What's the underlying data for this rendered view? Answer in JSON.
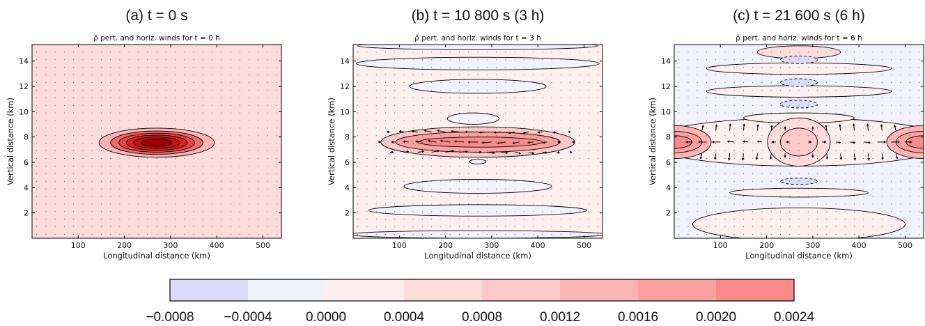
{
  "colors": {
    "levels": [
      "#dcdcfa",
      "#f2f2fd",
      "#fff0f0",
      "#fedcdc",
      "#fdc8c8",
      "#fcb4b4",
      "#fb9f9f",
      "#fa8a8a"
    ],
    "deep": [
      "#f06a6a",
      "#e84545",
      "#dc2020",
      "#c81010",
      "#a00000"
    ],
    "negative_contour": "#000000"
  },
  "chart_data": [
    {
      "type": "contour",
      "title": "(a) t = 0 s",
      "subtitle": "ρ̃ pert. and horiz. winds for t = 0 h",
      "xlabel": "Longitudinal distance (km)",
      "ylabel": "Vertical distance (km)",
      "xlim": [
        0,
        540
      ],
      "ylim": [
        0,
        15.3
      ],
      "xticks": [
        "100",
        "200",
        "300",
        "400",
        "500"
      ],
      "yticks": [
        "2",
        "4",
        "6",
        "8",
        "10",
        "12",
        "14"
      ],
      "background_level": 3,
      "features": [
        {
          "cx": 270,
          "cy": 7.55,
          "rx": 125,
          "ry": 1.15,
          "level": 5
        },
        {
          "cx": 270,
          "cy": 7.55,
          "rx": 100,
          "ry": 0.92,
          "level": 8
        },
        {
          "cx": 270,
          "cy": 7.55,
          "rx": 82,
          "ry": 0.75,
          "level": 9
        },
        {
          "cx": 270,
          "cy": 7.55,
          "rx": 66,
          "ry": 0.6,
          "level": 10
        },
        {
          "cx": 270,
          "cy": 7.55,
          "rx": 50,
          "ry": 0.45,
          "level": 11
        },
        {
          "cx": 270,
          "cy": 7.55,
          "rx": 33,
          "ry": 0.3,
          "level": 12
        }
      ],
      "arrows": []
    },
    {
      "type": "contour",
      "title": "(b) t = 10 800 s (3 h)",
      "subtitle": "ρ̃ pert. and horiz. winds for t = 3 h",
      "xlabel": "Longitudinal distance (km)",
      "ylabel": "Vertical distance (km)",
      "xlim": [
        0,
        540
      ],
      "ylim": [
        0,
        15.3
      ],
      "xticks": [
        "100",
        "200",
        "300",
        "400",
        "500"
      ],
      "yticks": [
        "2",
        "4",
        "6",
        "8",
        "10",
        "12",
        "14"
      ],
      "background_level": 2,
      "features": [
        {
          "cx": 270,
          "cy": 15.2,
          "rx": 260,
          "ry": 0.3,
          "level": 1
        },
        {
          "cx": 270,
          "cy": 13.8,
          "rx": 263,
          "ry": 0.5,
          "level": 1
        },
        {
          "cx": 270,
          "cy": 12.0,
          "rx": 148,
          "ry": 0.55,
          "level": 1
        },
        {
          "cx": 260,
          "cy": 9.45,
          "rx": 56,
          "ry": 0.45,
          "level": 1
        },
        {
          "cx": 270,
          "cy": 7.6,
          "rx": 210,
          "ry": 1.2,
          "level": 4
        },
        {
          "cx": 270,
          "cy": 7.6,
          "rx": 178,
          "ry": 0.8,
          "level": 6
        },
        {
          "cx": 275,
          "cy": 7.6,
          "rx": 135,
          "ry": 0.4,
          "level": 7
        },
        {
          "cx": 270,
          "cy": 6.05,
          "rx": 18,
          "ry": 0.18,
          "level": 1
        },
        {
          "cx": 270,
          "cy": 4.1,
          "rx": 160,
          "ry": 0.55,
          "level": 1
        },
        {
          "cx": 270,
          "cy": 2.2,
          "rx": 236,
          "ry": 0.45,
          "level": 1
        },
        {
          "cx": 270,
          "cy": 0.3,
          "rx": 280,
          "ry": 0.3,
          "level": 1
        }
      ],
      "arrows": [
        {
          "y": 8.4,
          "x": [
            80,
            110,
            140,
            170,
            200,
            230,
            260,
            290,
            320,
            350,
            380,
            410,
            440,
            470
          ],
          "u": [
            -5,
            -7,
            -9,
            -11,
            -12,
            -12,
            -12,
            -11,
            -10,
            -9,
            -8,
            -7,
            -5,
            -3
          ],
          "v": [
            0,
            1,
            1,
            2,
            2,
            1,
            0,
            -1,
            -1,
            -2,
            -2,
            -1,
            -1,
            0
          ]
        },
        {
          "y": 7.6,
          "x": [
            60,
            90,
            120,
            150,
            180,
            210,
            240,
            270,
            300,
            330,
            360,
            390,
            420,
            450,
            480
          ],
          "u": [
            -4,
            -5,
            -8,
            -10,
            -12,
            -14,
            -14,
            -14,
            -14,
            -12,
            -10,
            -8,
            -6,
            -5,
            -4
          ],
          "v": [
            0,
            0,
            1,
            1,
            2,
            2,
            1,
            0,
            -1,
            -2,
            -2,
            -1,
            -1,
            0,
            0
          ]
        },
        {
          "y": 6.8,
          "x": [
            80,
            110,
            140,
            170,
            200,
            230,
            260,
            290,
            320,
            350,
            380,
            410,
            440,
            470
          ],
          "u": [
            5,
            7,
            9,
            11,
            12,
            12,
            12,
            11,
            10,
            9,
            8,
            7,
            5,
            3
          ],
          "v": [
            0,
            1,
            1,
            2,
            2,
            1,
            0,
            -1,
            -1,
            -2,
            -2,
            -1,
            -1,
            0
          ]
        }
      ]
    },
    {
      "type": "contour",
      "title": "(c) t = 21 600 s (6 h)",
      "subtitle": "ρ̃ pert. and horiz. winds for t = 6 h",
      "xlabel": "Longitudinal distance (km)",
      "ylabel": "Vertical distance (km)",
      "xlim": [
        0,
        540
      ],
      "ylim": [
        0,
        15.3
      ],
      "xticks": [
        "100",
        "200",
        "300",
        "400",
        "500"
      ],
      "yticks": [
        "2",
        "4",
        "6",
        "8",
        "10",
        "12",
        "14"
      ],
      "background_level": 1,
      "features": [
        {
          "cx": 270,
          "cy": 7.6,
          "rx": 330,
          "ry": 1.9,
          "level": 2
        },
        {
          "cx": 270,
          "cy": 14.7,
          "rx": 90,
          "ry": 0.5,
          "level": 3
        },
        {
          "cx": 270,
          "cy": 13.4,
          "rx": 200,
          "ry": 0.45,
          "level": 2
        },
        {
          "cx": 270,
          "cy": 11.6,
          "rx": 200,
          "ry": 0.45,
          "level": 2
        },
        {
          "cx": 270,
          "cy": 14.1,
          "rx": 40,
          "ry": 0.3,
          "level": 0,
          "dashed": true
        },
        {
          "cx": 270,
          "cy": 12.3,
          "rx": 40,
          "ry": 0.3,
          "level": 0,
          "dashed": true
        },
        {
          "cx": 270,
          "cy": 10.6,
          "rx": 40,
          "ry": 0.3,
          "level": 0,
          "dashed": true
        },
        {
          "cx": 270,
          "cy": 9.5,
          "rx": 120,
          "ry": 0.4,
          "level": 2
        },
        {
          "cx": 0,
          "cy": 7.6,
          "rx": 80,
          "ry": 1.3,
          "level": 5
        },
        {
          "cx": 540,
          "cy": 7.6,
          "rx": 80,
          "ry": 1.3,
          "level": 5
        },
        {
          "cx": 0,
          "cy": 7.6,
          "rx": 60,
          "ry": 0.85,
          "level": 6
        },
        {
          "cx": 540,
          "cy": 7.6,
          "rx": 60,
          "ry": 0.85,
          "level": 6
        },
        {
          "cx": 0,
          "cy": 7.6,
          "rx": 38,
          "ry": 0.5,
          "level": 7
        },
        {
          "cx": 540,
          "cy": 7.6,
          "rx": 38,
          "ry": 0.5,
          "level": 7
        },
        {
          "cx": 270,
          "cy": 7.6,
          "rx": 68,
          "ry": 1.9,
          "level": 3
        },
        {
          "cx": 270,
          "cy": 7.6,
          "rx": 40,
          "ry": 1.1,
          "level": 4
        },
        {
          "cx": 270,
          "cy": 4.5,
          "rx": 40,
          "ry": 0.25,
          "level": 0,
          "dashed": true
        },
        {
          "cx": 270,
          "cy": 3.6,
          "rx": 150,
          "ry": 0.35,
          "level": 2
        },
        {
          "cx": 270,
          "cy": 1.1,
          "rx": 230,
          "ry": 1.3,
          "level": 2
        }
      ],
      "arrows": [
        {
          "y": 8.5,
          "x": [
            60,
            90,
            120,
            150,
            180,
            210,
            240,
            300,
            330,
            360,
            390,
            420,
            450,
            480
          ],
          "u": [
            2,
            1,
            1,
            1,
            1,
            1,
            0,
            0,
            -1,
            -1,
            -1,
            -1,
            -1,
            -2
          ],
          "v": [
            8,
            9,
            10,
            10,
            9,
            8,
            6,
            6,
            8,
            9,
            10,
            10,
            9,
            8
          ]
        },
        {
          "y": 7.6,
          "x": [
            40,
            70,
            100,
            130,
            160,
            190,
            220,
            250,
            290,
            320,
            350,
            380,
            410,
            440,
            470,
            500
          ],
          "u": [
            -10,
            -12,
            -12,
            -10,
            -8,
            -7,
            -6,
            -5,
            5,
            6,
            7,
            8,
            10,
            12,
            12,
            10
          ],
          "v": [
            0,
            0,
            0,
            1,
            1,
            1,
            0,
            0,
            0,
            0,
            -1,
            -1,
            -1,
            0,
            0,
            0
          ]
        },
        {
          "y": 6.7,
          "x": [
            60,
            90,
            120,
            150,
            180,
            210,
            240,
            300,
            330,
            360,
            390,
            420,
            450,
            480
          ],
          "u": [
            -2,
            -1,
            -1,
            -1,
            -1,
            -1,
            0,
            0,
            1,
            1,
            1,
            1,
            1,
            2
          ],
          "v": [
            -8,
            -9,
            -10,
            -10,
            -9,
            -8,
            -6,
            -6,
            -8,
            -9,
            -10,
            -10,
            -9,
            -8
          ]
        }
      ]
    }
  ],
  "colorbar": {
    "ticks": [
      "−0.0008",
      "−0.0004",
      "0.0000",
      "0.0004",
      "0.0008",
      "0.0012",
      "0.0016",
      "0.0020",
      "0.0024"
    ]
  }
}
